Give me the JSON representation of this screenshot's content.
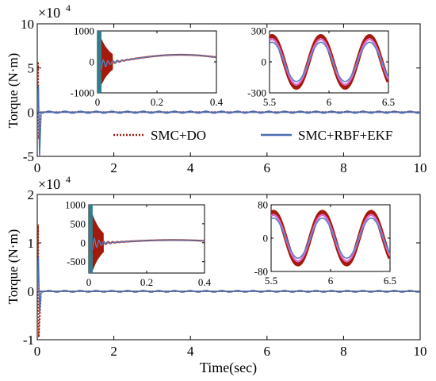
{
  "colors": {
    "smc_do": "#a31a0c",
    "smc_rbf_ekf": "#4a6fb0",
    "smc_rbf_ekf_inset": "#5a86c8",
    "inset_pink": "#e06bd0",
    "axis": "#000000"
  },
  "legend": {
    "entries": [
      "SMC+DO",
      "SMC+RBF+EKF"
    ]
  },
  "chart_data": [
    {
      "type": "line",
      "ylabel": "Torque (N·m)",
      "y_exponent": "×10",
      "y_exponent_power": "4",
      "ylim": [
        -5,
        10
      ],
      "yticks": [
        "-5",
        "0",
        "5",
        "10"
      ],
      "xlim": [
        0,
        10
      ],
      "xticks": [
        "0",
        "2",
        "4",
        "6",
        "8",
        "10"
      ],
      "series": [
        {
          "name": "SMC+DO",
          "style": "dotted",
          "x": [
            0.0,
            0.02,
            0.04,
            0.1,
            0.2,
            10
          ],
          "y": [
            0,
            5.7,
            -3.0,
            0.0,
            0.0,
            0.0
          ]
        },
        {
          "name": "SMC+RBF+EKF",
          "style": "solid",
          "x": [
            0.0,
            0.03,
            0.06,
            0.1,
            10
          ],
          "y": [
            0,
            3.0,
            -4.9,
            0.0,
            0.0
          ]
        }
      ],
      "insets": [
        {
          "xlim": [
            0,
            0.4
          ],
          "ylim": [
            -1000,
            1000
          ],
          "xticks": [
            "0",
            "0.2",
            "0.4"
          ],
          "yticks": [
            "-1000",
            "0",
            "1000"
          ],
          "slow_wave_amplitude": 230,
          "slow_wave_peak_x": 0.28
        },
        {
          "xlim": [
            5.5,
            6.5
          ],
          "ylim": [
            -300,
            300
          ],
          "xticks": [
            "5.5",
            "6",
            "6.5"
          ],
          "yticks": [
            "-300",
            "0",
            "300"
          ],
          "period": 0.41,
          "amplitude_smc_do": 250,
          "amplitude_smc_rbf_ekf": 190
        }
      ]
    },
    {
      "type": "line",
      "ylabel": "Torque (N·m)",
      "xlabel": "Time(sec)",
      "y_exponent": "×10",
      "y_exponent_power": "4",
      "ylim": [
        -1,
        2
      ],
      "yticks": [
        "-1",
        "0",
        "1",
        "2"
      ],
      "xlim": [
        0,
        10
      ],
      "xticks": [
        "0",
        "2",
        "4",
        "6",
        "8",
        "10"
      ],
      "series": [
        {
          "name": "SMC+DO",
          "style": "dotted",
          "x": [
            0.0,
            0.02,
            0.04,
            0.1,
            10
          ],
          "y": [
            0,
            1.38,
            -0.95,
            0.0,
            0.0
          ]
        },
        {
          "name": "SMC+RBF+EKF",
          "style": "solid",
          "x": [
            0.0,
            0.03,
            0.06,
            0.1,
            10
          ],
          "y": [
            0,
            0.7,
            -0.45,
            0.0,
            0.0
          ]
        }
      ],
      "insets": [
        {
          "xlim": [
            0,
            0.4
          ],
          "ylim": [
            -800,
            1000
          ],
          "xticks": [
            "0",
            "0.2",
            "0.4"
          ],
          "yticks": [
            "-500",
            "0",
            "500",
            "1000"
          ],
          "slow_wave_amplitude": 70,
          "slow_wave_peak_x": 0.29
        },
        {
          "xlim": [
            5.5,
            6.5
          ],
          "ylim": [
            -80,
            80
          ],
          "xticks": [
            "5.5",
            "6",
            "6.5"
          ],
          "yticks": [
            "-80",
            "0",
            "80"
          ],
          "period": 0.41,
          "amplitude_smc_do": 63,
          "amplitude_smc_rbf_ekf": 48
        }
      ]
    }
  ]
}
